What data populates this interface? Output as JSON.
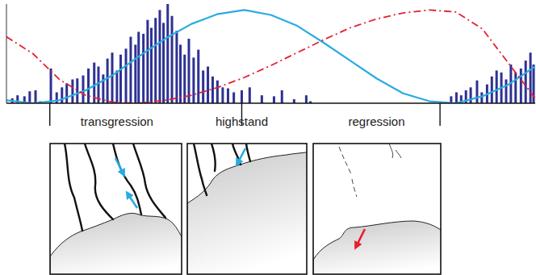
{
  "chart_data": {
    "type": "line",
    "xlim": [
      0,
      100
    ],
    "ylim": [
      0,
      100
    ],
    "xticks": [
      8.2,
      44.5,
      82
    ],
    "tick_labels": false,
    "annotations": [
      {
        "text": "transgression",
        "x": 20.9
      },
      {
        "text": "highstand",
        "x": 44.5
      },
      {
        "text": "regression",
        "x": 70
      }
    ],
    "series": [
      {
        "type": "bar",
        "color": "#2e3192",
        "x": [
          1.1,
          2.1,
          3.4,
          4.4,
          5.5,
          6.4,
          8.4,
          9.5,
          10.5,
          11.4,
          12.5,
          13.4,
          14.5,
          15.5,
          16.6,
          17.4,
          18.3,
          19.1,
          20.0,
          20.9,
          21.6,
          22.6,
          23.5,
          24.4,
          25.0,
          25.9,
          26.7,
          27.4,
          28.2,
          29.0,
          29.7,
          30.5,
          31.3,
          32.2,
          32.9,
          33.7,
          34.5,
          35.4,
          36.3,
          37.2,
          38.1,
          39.0,
          39.9,
          40.9,
          41.9,
          43.0,
          44.5,
          46.0,
          48.3,
          50.6,
          52.1,
          54.4,
          56.7,
          57.5,
          84.1,
          85.1,
          86.0,
          86.9,
          87.8,
          89.0,
          89.9,
          90.9,
          91.8,
          92.7,
          93.6,
          94.5,
          95.4,
          96.3,
          97.3,
          98.2,
          99.1,
          99.7
        ],
        "values": [
          5,
          8,
          7,
          12,
          13,
          2,
          35,
          11,
          16,
          20,
          24,
          25,
          28,
          35,
          41,
          37,
          29,
          45,
          51,
          33,
          49,
          55,
          67,
          59,
          72,
          70,
          84,
          76,
          86,
          94,
          81,
          100,
          88,
          73,
          59,
          49,
          65,
          46,
          54,
          33,
          37,
          27,
          23,
          16,
          15,
          11,
          13,
          16,
          8,
          7,
          13,
          4,
          8,
          2,
          7,
          11,
          8,
          13,
          16,
          23,
          11,
          19,
          27,
          33,
          31,
          24,
          39,
          31,
          35,
          43,
          51,
          39
        ]
      },
      {
        "type": "line",
        "color": "#29abe2",
        "line_style": "solid",
        "x": [
          0,
          5,
          10,
          15,
          20,
          25,
          30,
          35,
          40,
          45,
          50,
          55,
          60,
          65,
          70,
          75,
          80,
          85,
          90,
          95,
          100
        ],
        "values": [
          3,
          0,
          3,
          13,
          28,
          47,
          65,
          80,
          90,
          94,
          89,
          78,
          61,
          43,
          25,
          10,
          2,
          0,
          7,
          19,
          37
        ]
      },
      {
        "type": "line",
        "color": "#e5202e",
        "line_style": "dashdot",
        "x": [
          0,
          5,
          10,
          15,
          20,
          25,
          30,
          35,
          40,
          45,
          50,
          55,
          60,
          65,
          70,
          75,
          80,
          85,
          90,
          95,
          100
        ],
        "values": [
          67,
          50,
          24,
          8,
          1,
          0,
          3,
          8,
          16,
          26,
          38,
          51,
          64,
          76,
          85,
          91,
          94,
          92,
          75,
          40,
          5
        ]
      }
    ]
  }
}
